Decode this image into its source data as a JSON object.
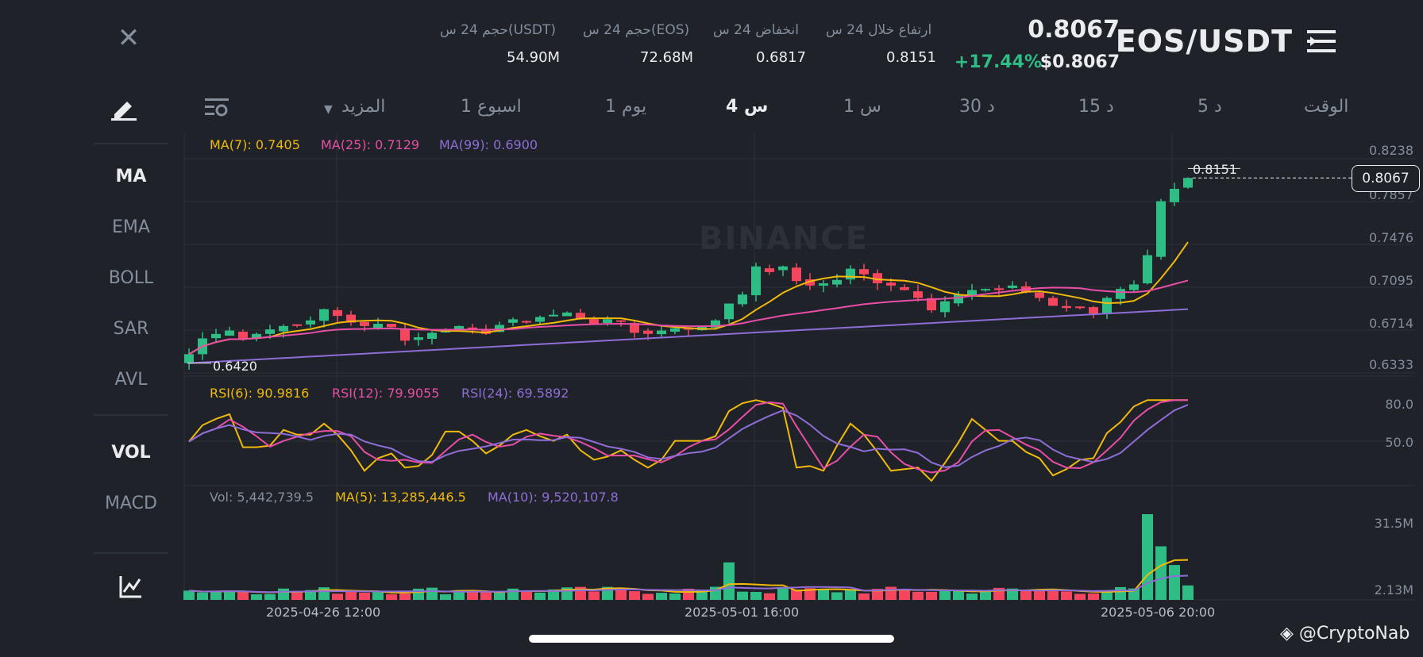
{
  "header": {
    "pair": "EOS/USDT",
    "last_price": "0.8067",
    "change_pct": "+17.44%",
    "usd_price": "$0.8067",
    "stats": [
      {
        "label": "ارتفاع خلال 24 س",
        "value": "0.8151"
      },
      {
        "label": "انخفاض 24 س",
        "value": "0.6817"
      },
      {
        "label": "حجم 24 س(EOS)",
        "value": "72.68M"
      },
      {
        "label": "حجم 24 س(USDT)",
        "value": "54.90M"
      }
    ]
  },
  "timeframes": {
    "time_label": "الوقت",
    "items": [
      "5 د",
      "15 د",
      "30 د",
      "1 س",
      "4 س",
      "1 يوم",
      "1 اسبوع",
      "المزيد"
    ],
    "active": "4 س"
  },
  "indicators": {
    "main": [
      "MA",
      "EMA",
      "BOLL",
      "SAR",
      "AVL"
    ],
    "sub": [
      "VOL",
      "MACD"
    ],
    "active_main": "MA",
    "active_sub": "VOL"
  },
  "legends": {
    "ma7": "MA(7): 0.7405",
    "ma25": "MA(25): 0.7129",
    "ma99": "MA(99): 0.6900",
    "rsi6": "RSI(6): 90.9816",
    "rsi12": "RSI(12): 79.9055",
    "rsi24": "RSI(24): 69.5892",
    "vol": "Vol: 5,442,739.5",
    "vol_ma5": "MA(5): 13,285,446.5",
    "vol_ma10": "MA(10): 9,520,107.8"
  },
  "price_axis": [
    "0.8238",
    "0.7857",
    "0.7476",
    "0.7095",
    "0.6714",
    "0.6333"
  ],
  "current_price_tag": "0.8067",
  "high_marker": "0.8151",
  "low_marker": "0.6420",
  "rsi_axis": [
    "80.0",
    "50.0"
  ],
  "vol_axis": [
    "31.5M",
    "2.13M"
  ],
  "dates": [
    "2025-04-26 12:00",
    "2025-05-01 16:00",
    "2025-05-06 20:00"
  ],
  "watermark": "@CryptoNab",
  "background_logo": "BINANCE",
  "colors": {
    "up": "#2ebd85",
    "down": "#f6465d",
    "ma7": "#f0b90b",
    "ma25": "#e84ea6",
    "ma99": "#8f6dd8"
  },
  "chart_data": {
    "type": "candlestick",
    "closes": [
      0.65,
      0.664,
      0.668,
      0.671,
      0.664,
      0.668,
      0.672,
      0.675,
      0.676,
      0.68,
      0.69,
      0.684,
      0.678,
      0.675,
      0.677,
      0.674,
      0.662,
      0.665,
      0.669,
      0.672,
      0.675,
      0.673,
      0.668,
      0.676,
      0.681,
      0.679,
      0.683,
      0.685,
      0.687,
      0.681,
      0.677,
      0.681,
      0.679,
      0.669,
      0.668,
      0.671,
      0.673,
      0.672,
      0.675,
      0.68,
      0.695,
      0.703,
      0.728,
      0.723,
      0.728,
      0.715,
      0.711,
      0.713,
      0.716,
      0.726,
      0.721,
      0.713,
      0.711,
      0.707,
      0.7,
      0.689,
      0.697,
      0.703,
      0.707,
      0.708,
      0.707,
      0.711,
      0.705,
      0.7,
      0.693,
      0.691,
      0.692,
      0.686,
      0.7,
      0.708,
      0.712,
      0.738,
      0.786,
      0.797,
      0.8067
    ]
  }
}
